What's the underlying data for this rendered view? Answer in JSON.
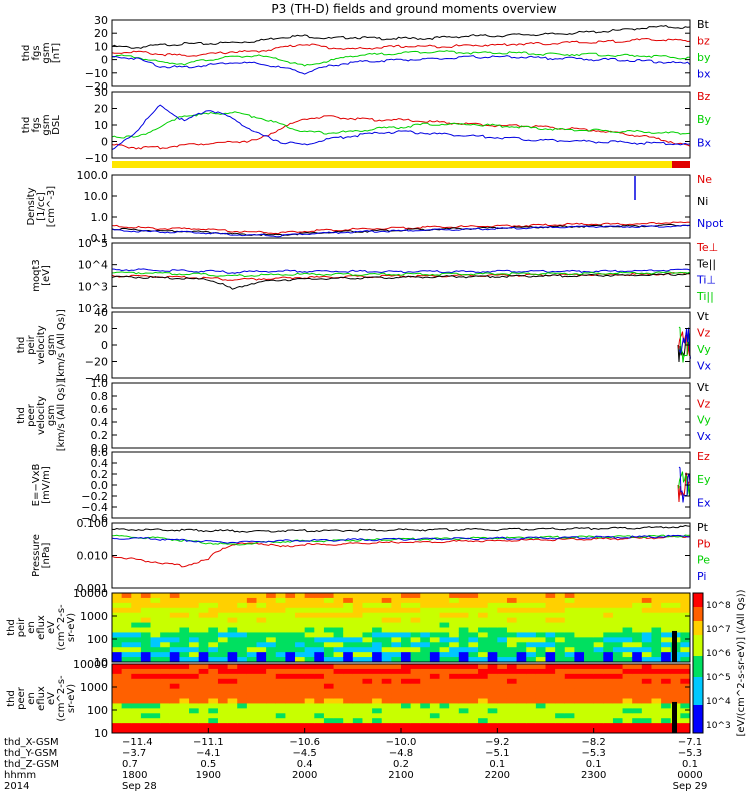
{
  "title": "P3 (TH-D) fields and ground moments overview",
  "colors": {
    "black": "#000000",
    "red": "#e00000",
    "green": "#00d000",
    "blue": "#0000e0",
    "yellow": "#ffe600"
  },
  "chart_data": [
    {
      "type": "line",
      "id": "p1",
      "ylabel": [
        "thd",
        "fgs",
        "gsm",
        "[nT]"
      ],
      "ylim": [
        -20,
        30
      ],
      "ticks": [
        "30",
        "20",
        "10",
        "0",
        "−10",
        "−20"
      ],
      "series": [
        {
          "name": "Bt",
          "color": "black",
          "values": [
            10,
            9,
            11,
            12,
            12,
            13,
            14,
            17,
            18,
            16,
            17,
            16,
            16,
            16,
            17,
            18,
            18,
            19,
            19,
            20,
            21,
            22,
            24,
            25,
            24
          ]
        },
        {
          "name": "bz",
          "color": "red",
          "values": [
            5,
            6,
            4,
            3,
            4,
            6,
            6,
            9,
            12,
            9,
            8,
            9,
            10,
            10,
            10,
            11,
            11,
            12,
            12,
            13,
            13,
            14,
            15,
            15,
            14
          ]
        },
        {
          "name": "by",
          "color": "green",
          "values": [
            3,
            2,
            -2,
            -3,
            0,
            2,
            3,
            0,
            -5,
            -1,
            3,
            4,
            5,
            6,
            6,
            5,
            5,
            5,
            4,
            4,
            4,
            3,
            3,
            2,
            1
          ]
        },
        {
          "name": "bx",
          "color": "blue",
          "values": [
            2,
            1,
            -5,
            -6,
            -4,
            -2,
            -3,
            -6,
            -10,
            -5,
            -2,
            -1,
            0,
            0,
            1,
            2,
            2,
            2,
            1,
            1,
            0,
            0,
            -1,
            -2,
            -3
          ]
        }
      ]
    },
    {
      "type": "line",
      "id": "p2",
      "ylabel": [
        "thd",
        "fgs",
        "gsm",
        "DSL"
      ],
      "ylim": [
        -15,
        30
      ],
      "ticks": [
        "30",
        "20",
        "10",
        "0",
        "−10"
      ],
      "series": [
        {
          "name": "Bz",
          "color": "red",
          "values": [
            -6,
            -8,
            -8,
            -6,
            -5,
            -4,
            -3,
            5,
            12,
            13,
            12,
            11,
            11,
            10,
            9,
            8,
            7,
            7,
            6,
            5,
            4,
            2,
            0,
            -3,
            -7
          ]
        },
        {
          "name": "By",
          "color": "green",
          "values": [
            0,
            -1,
            6,
            14,
            15,
            16,
            13,
            8,
            3,
            2,
            3,
            5,
            6,
            8,
            8,
            8,
            7,
            6,
            5,
            4,
            4,
            3,
            3,
            2,
            2
          ]
        },
        {
          "name": "Bx",
          "color": "blue",
          "values": [
            -10,
            3,
            21,
            10,
            18,
            12,
            2,
            -4,
            -6,
            -2,
            0,
            2,
            3,
            2,
            1,
            0,
            -1,
            -2,
            -3,
            -3,
            -4,
            -4,
            -5,
            -5,
            -6
          ]
        }
      ]
    },
    {
      "type": "line",
      "id": "p3",
      "log": true,
      "ylabel": [
        "Density",
        "[1/cc]",
        "[cm^-3]"
      ],
      "ylim": [
        0.1,
        150
      ],
      "ticks": [
        "100.0",
        "10.0",
        "1.0",
        "0.1"
      ],
      "series": [
        {
          "name": "Ne",
          "color": "red",
          "values": [
            0.4,
            0.35,
            0.3,
            0.3,
            0.28,
            0.22,
            0.2,
            0.18,
            0.22,
            0.25,
            0.28,
            0.3,
            0.32,
            0.35,
            0.37,
            0.38,
            0.4,
            0.42,
            0.45,
            0.5,
            0.5,
            0.5,
            0.5,
            0.6,
            0.6
          ]
        },
        {
          "name": "Ni",
          "color": "black",
          "values": [
            0.3,
            0.26,
            0.22,
            0.22,
            0.2,
            0.16,
            0.15,
            0.14,
            0.17,
            0.19,
            0.21,
            0.23,
            0.25,
            0.27,
            0.29,
            0.3,
            0.32,
            0.34,
            0.36,
            0.38,
            0.4,
            0.4,
            0.4,
            0.45,
            0.45
          ]
        },
        {
          "name": "Npot",
          "color": "blue",
          "values": [
            0.25,
            0.22,
            0.2,
            0.2,
            0.18,
            0.15,
            0.14,
            0.13,
            0.16,
            0.18,
            0.2,
            0.22,
            0.23,
            0.25,
            0.27,
            0.28,
            0.3,
            0.32,
            0.34,
            0.36,
            0.38,
            0.38,
            0.38,
            0.4,
            0.4
          ]
        }
      ]
    },
    {
      "type": "line",
      "id": "p4",
      "log": true,
      "ylabel": [
        "moqt3",
        "[eV]"
      ],
      "ylim": [
        100,
        100000
      ],
      "ticks": [
        "10^5",
        "10^4",
        "10^3",
        "10^2"
      ],
      "series": [
        {
          "name": "Te⊥",
          "color": "red",
          "values": [
            3000,
            3000,
            2800,
            2600,
            2400,
            2000,
            2200,
            2400,
            2600,
            2700,
            2800,
            2900,
            3000,
            3000,
            3100,
            3200,
            3200,
            3300,
            3300,
            3400,
            3400,
            3500,
            3600,
            3800,
            4000
          ]
        },
        {
          "name": "Te||",
          "color": "black",
          "values": [
            2800,
            2700,
            2500,
            2300,
            2000,
            700,
            1500,
            2000,
            2200,
            2300,
            2400,
            2500,
            2600,
            2700,
            2800,
            2800,
            2900,
            3000,
            3000,
            3100,
            3200,
            3200,
            3300,
            3500,
            3800
          ]
        },
        {
          "name": "Ti⊥",
          "color": "blue",
          "values": [
            6000,
            5800,
            5500,
            5200,
            5000,
            4500,
            4800,
            5000,
            5000,
            5000,
            4900,
            4800,
            4800,
            4800,
            4800,
            4800,
            4900,
            4900,
            5000,
            5000,
            5000,
            5000,
            5200,
            5500,
            6000
          ]
        },
        {
          "name": "Ti||",
          "color": "green",
          "values": [
            4500,
            4300,
            4000,
            3800,
            3500,
            3000,
            3300,
            3500,
            3600,
            3600,
            3600,
            3600,
            3600,
            3600,
            3700,
            3700,
            3800,
            3800,
            3900,
            3900,
            4000,
            4000,
            4100,
            4300,
            4500
          ]
        }
      ]
    },
    {
      "type": "line",
      "id": "p5",
      "ylabel": [
        "thd",
        "peir",
        "velocity",
        "gsm",
        "[km/s (All Qs)]"
      ],
      "ylim": [
        -40,
        40
      ],
      "ticks": [
        "40",
        "20",
        "0",
        "−20",
        "−40"
      ],
      "series": [
        {
          "name": "Vt",
          "color": "black",
          "values": []
        },
        {
          "name": "Vz",
          "color": "red",
          "values": []
        },
        {
          "name": "Vy",
          "color": "green",
          "values": []
        },
        {
          "name": "Vx",
          "color": "blue",
          "values": []
        }
      ]
    },
    {
      "type": "line",
      "id": "p6",
      "ylabel": [
        "thd",
        "peer",
        "velocity",
        "gsm",
        "[km/s (All Qs)]"
      ],
      "ylim": [
        0,
        1
      ],
      "ticks": [
        "1.0",
        "0.8",
        "0.6",
        "0.4",
        "0.2",
        "0.0"
      ],
      "series": [
        {
          "name": "Vt",
          "color": "black",
          "values": []
        },
        {
          "name": "Vz",
          "color": "red",
          "values": []
        },
        {
          "name": "Vy",
          "color": "green",
          "values": []
        },
        {
          "name": "Vx",
          "color": "blue",
          "values": []
        }
      ]
    },
    {
      "type": "line",
      "id": "p7",
      "ylabel": [
        "E=−VxB",
        "[mV/m]"
      ],
      "ylim": [
        -0.6,
        0.6
      ],
      "ticks": [
        "0.6",
        "0.4",
        "0.2",
        "0.0",
        "−0.2",
        "−0.4",
        "−0.6"
      ],
      "series": [
        {
          "name": "Ez",
          "color": "red",
          "values": []
        },
        {
          "name": "Ey",
          "color": "green",
          "values": []
        },
        {
          "name": "Ex",
          "color": "blue",
          "values": []
        }
      ]
    },
    {
      "type": "line",
      "id": "p8",
      "log": true,
      "ylabel": [
        "Pressure",
        "[nPa]"
      ],
      "ylim": [
        0.001,
        1
      ],
      "ticks": [
        "0.100",
        "0.010",
        "0.001"
      ],
      "series": [
        {
          "name": "Pt",
          "color": "black",
          "values": [
            0.5,
            0.5,
            0.48,
            0.47,
            0.45,
            0.43,
            0.4,
            0.45,
            0.45,
            0.45,
            0.46,
            0.47,
            0.48,
            0.48,
            0.49,
            0.5,
            0.5,
            0.52,
            0.53,
            0.55,
            0.56,
            0.58,
            0.6,
            0.65,
            0.7
          ]
        },
        {
          "name": "Pb",
          "color": "red",
          "values": [
            0.03,
            0.02,
            0.015,
            0.01,
            0.02,
            0.1,
            0.12,
            0.08,
            0.1,
            0.1,
            0.11,
            0.12,
            0.13,
            0.13,
            0.14,
            0.15,
            0.15,
            0.16,
            0.17,
            0.18,
            0.18,
            0.19,
            0.2,
            0.22,
            0.25
          ]
        },
        {
          "name": "Pe",
          "color": "green",
          "values": [
            0.25,
            0.22,
            0.2,
            0.15,
            0.12,
            0.1,
            0.12,
            0.14,
            0.15,
            0.15,
            0.16,
            0.17,
            0.18,
            0.18,
            0.19,
            0.2,
            0.2,
            0.21,
            0.22,
            0.22,
            0.23,
            0.23,
            0.24,
            0.25,
            0.26
          ]
        },
        {
          "name": "Pi",
          "color": "blue",
          "values": [
            0.2,
            0.2,
            0.18,
            0.16,
            0.14,
            0.13,
            0.14,
            0.15,
            0.16,
            0.16,
            0.17,
            0.17,
            0.18,
            0.18,
            0.19,
            0.19,
            0.2,
            0.2,
            0.21,
            0.21,
            0.22,
            0.22,
            0.23,
            0.24,
            0.25
          ]
        }
      ]
    },
    {
      "type": "heatmap",
      "id": "s1",
      "ylabel": [
        "thd",
        "peir",
        "en",
        "eflux",
        "eV",
        "(cm^2-s-",
        "sr-eV)"
      ],
      "log": true,
      "ylim": [
        5,
        30000
      ],
      "ticks": [
        "10000",
        "1000",
        "100",
        "10"
      ]
    },
    {
      "type": "heatmap",
      "id": "s2",
      "ylabel": [
        "thd",
        "peer",
        "en",
        "eflux",
        "eV",
        "(cm^2-s-",
        "sr-eV)"
      ],
      "log": true,
      "ylim": [
        5,
        30000
      ],
      "ticks": [
        "10000",
        "1000",
        "100",
        "10"
      ]
    }
  ],
  "colorbar": {
    "label": "[eV/(cm^2-s-sr-eV)] ((All Qs))",
    "ticks": [
      "10^8",
      "10^7",
      "10^6",
      "10^5",
      "10^4",
      "10^3"
    ]
  },
  "xaxis": {
    "rows": [
      {
        "label": "thd_X-GSM",
        "values": [
          "−11.4",
          "−11.1",
          "−10.6",
          "−10.0",
          "−9.2",
          "−8.2",
          "−7.1"
        ]
      },
      {
        "label": "thd_Y-GSM",
        "values": [
          "−3.7",
          "−4.1",
          "−4.5",
          "−4.8",
          "−5.1",
          "−5.3",
          "−5.3"
        ]
      },
      {
        "label": "thd_Z-GSM",
        "values": [
          "0.7",
          "0.5",
          "0.4",
          "0.2",
          "0.1",
          "0.1",
          "0.1"
        ]
      },
      {
        "label": "hhmm",
        "values": [
          "1800",
          "1900",
          "2000",
          "2100",
          "2200",
          "2300",
          "0000"
        ]
      },
      {
        "label": "2014",
        "values": [
          "Sep 28",
          "",
          "",
          "",
          "",
          "",
          "Sep 29"
        ]
      }
    ]
  }
}
